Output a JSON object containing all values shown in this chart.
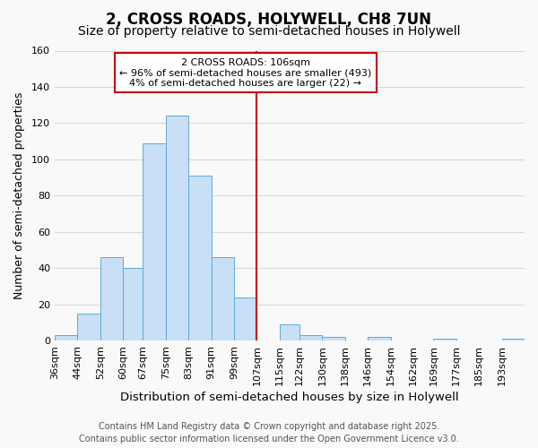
{
  "title": "2, CROSS ROADS, HOLYWELL, CH8 7UN",
  "subtitle": "Size of property relative to semi-detached houses in Holywell",
  "xlabel": "Distribution of semi-detached houses by size in Holywell",
  "ylabel": "Number of semi-detached properties",
  "bin_labels": [
    "36sqm",
    "44sqm",
    "52sqm",
    "60sqm",
    "67sqm",
    "75sqm",
    "83sqm",
    "91sqm",
    "99sqm",
    "107sqm",
    "115sqm",
    "122sqm",
    "130sqm",
    "138sqm",
    "146sqm",
    "154sqm",
    "162sqm",
    "169sqm",
    "177sqm",
    "185sqm",
    "193sqm"
  ],
  "bar_heights": [
    3,
    15,
    46,
    40,
    109,
    124,
    91,
    46,
    24,
    0,
    9,
    3,
    2,
    0,
    2,
    0,
    0,
    1,
    0,
    0,
    1
  ],
  "bar_left_edges": [
    36,
    44,
    52,
    60,
    67,
    75,
    83,
    91,
    99,
    107,
    115,
    122,
    130,
    138,
    146,
    154,
    162,
    169,
    177,
    185,
    193
  ],
  "bar_widths": [
    8,
    8,
    8,
    7,
    8,
    8,
    8,
    8,
    8,
    8,
    7,
    8,
    8,
    8,
    8,
    8,
    7,
    8,
    8,
    8,
    8
  ],
  "bar_color": "#c8dff5",
  "bar_edge_color": "#5badd6",
  "vline_x": 107,
  "vline_color": "#cc0000",
  "annotation_title": "2 CROSS ROADS: 106sqm",
  "annotation_line1": "← 96% of semi-detached houses are smaller (493)",
  "annotation_line2": "4% of semi-detached houses are larger (22) →",
  "annotation_box_color": "#ffffff",
  "annotation_box_edge": "#cc0000",
  "ylim": [
    0,
    160
  ],
  "yticks": [
    0,
    20,
    40,
    60,
    80,
    100,
    120,
    140,
    160
  ],
  "grid_color": "#d8d8d8",
  "footer_line1": "Contains HM Land Registry data © Crown copyright and database right 2025.",
  "footer_line2": "Contains public sector information licensed under the Open Government Licence v3.0.",
  "bg_color": "#f9f9f9",
  "title_fontsize": 12,
  "subtitle_fontsize": 10,
  "xlabel_fontsize": 9.5,
  "ylabel_fontsize": 9,
  "tick_fontsize": 8,
  "footer_fontsize": 7
}
